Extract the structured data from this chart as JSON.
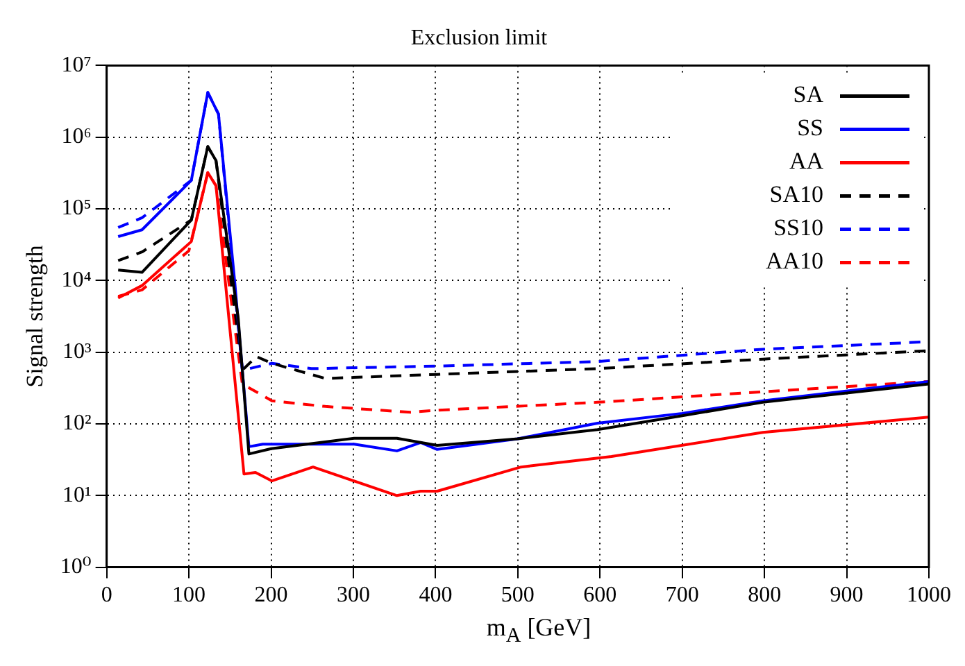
{
  "chart_data": {
    "type": "line",
    "title": "Exclusion limit",
    "xlabel": "m$_{A}$ [GeV]",
    "ylabel": "Signal strength",
    "xlim": [
      0,
      1000
    ],
    "xticks": [
      0,
      100,
      200,
      300,
      400,
      500,
      600,
      700,
      800,
      900,
      1000
    ],
    "ylim": [
      1,
      10000000
    ],
    "yticks": [
      {
        "value": 1,
        "label": "10⁰"
      },
      {
        "value": 10,
        "label": "10¹"
      },
      {
        "value": 100,
        "label": "10²"
      },
      {
        "value": 1000,
        "label": "10³"
      },
      {
        "value": 10000,
        "label": "10⁴"
      },
      {
        "value": 100000,
        "label": "10⁵"
      },
      {
        "value": 1000000,
        "label": "10⁶"
      },
      {
        "value": 10000000,
        "label": "10⁷"
      }
    ],
    "log": "y",
    "grid": true,
    "legend": "top right",
    "marker": "none",
    "series": [
      {
        "name": "SA",
        "color": "#000000",
        "line_style": "solid",
        "x": [
          14,
          43,
          103,
          123,
          133,
          160,
          173,
          200,
          301,
          353,
          402,
          500,
          597,
          700,
          798,
          1000
        ],
        "values": [
          14000,
          13000,
          70000,
          740000,
          470000,
          3000,
          38,
          45,
          63,
          63,
          50,
          62,
          83,
          130,
          200,
          360
        ]
      },
      {
        "name": "SS",
        "color": "#0000ff",
        "line_style": "solid",
        "x": [
          14,
          43,
          103,
          123,
          136,
          156,
          173,
          190,
          301,
          353,
          382,
          402,
          500,
          597,
          700,
          798,
          1000
        ],
        "values": [
          41000,
          51000,
          250000,
          4200000,
          2100000,
          9000,
          48,
          52,
          52,
          42,
          55,
          44,
          62,
          102,
          140,
          210,
          390
        ]
      },
      {
        "name": "AA",
        "color": "#ff0000",
        "line_style": "solid",
        "x": [
          14,
          43,
          103,
          123,
          133,
          167,
          181,
          201,
          251,
          353,
          382,
          402,
          504,
          614,
          798,
          1000
        ],
        "values": [
          5700,
          8500,
          35000,
          320000,
          210000,
          20,
          21,
          16,
          25,
          10,
          11.5,
          11.5,
          25,
          35,
          76,
          124
        ]
      },
      {
        "name": "SA10",
        "color": "#000000",
        "line_style": "dashed",
        "x": [
          14,
          43,
          103,
          123,
          133,
          165,
          182,
          201,
          266,
          402,
          597,
          798,
          1000
        ],
        "values": [
          19000,
          25000,
          70000,
          740000,
          470000,
          560,
          870,
          700,
          430,
          490,
          590,
          800,
          1050
        ]
      },
      {
        "name": "SS10",
        "color": "#0000ff",
        "line_style": "dashed",
        "x": [
          14,
          43,
          103,
          123,
          136,
          165,
          201,
          249,
          402,
          597,
          798,
          1000
        ],
        "values": [
          55000,
          75000,
          250000,
          4200000,
          2100000,
          560,
          700,
          590,
          640,
          740,
          1100,
          1400
        ]
      },
      {
        "name": "AA10",
        "color": "#ff0000",
        "line_style": "dashed",
        "x": [
          14,
          43,
          100,
          123,
          133,
          165,
          201,
          266,
          370,
          402,
          597,
          798,
          1000
        ],
        "values": [
          6000,
          7400,
          26000,
          320000,
          210000,
          360,
          210,
          175,
          145,
          155,
          200,
          280,
          390
        ]
      }
    ]
  }
}
